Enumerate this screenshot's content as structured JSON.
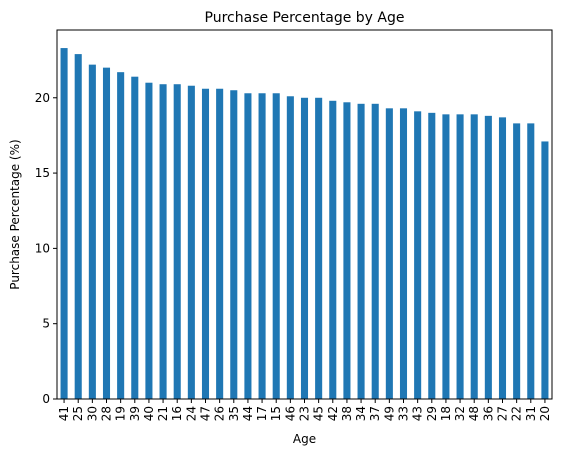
{
  "chart_data": {
    "type": "bar",
    "title": "Purchase Percentage by Age",
    "xlabel": "Age",
    "ylabel": "Purchase Percentage (%)",
    "ylim": [
      0,
      24.5
    ],
    "yticks": [
      0,
      5,
      10,
      15,
      20
    ],
    "grid": false,
    "bar_color": "#1f77b4",
    "categories": [
      "41",
      "25",
      "30",
      "28",
      "19",
      "39",
      "40",
      "21",
      "16",
      "24",
      "47",
      "26",
      "35",
      "44",
      "17",
      "15",
      "46",
      "23",
      "45",
      "42",
      "38",
      "34",
      "37",
      "49",
      "33",
      "43",
      "29",
      "18",
      "32",
      "48",
      "36",
      "27",
      "22",
      "31",
      "20"
    ],
    "values": [
      23.3,
      22.9,
      22.2,
      22.0,
      21.7,
      21.4,
      21.0,
      20.9,
      20.9,
      20.8,
      20.6,
      20.6,
      20.5,
      20.3,
      20.3,
      20.3,
      20.1,
      20.0,
      20.0,
      19.8,
      19.7,
      19.6,
      19.6,
      19.3,
      19.3,
      19.1,
      19.0,
      18.9,
      18.9,
      18.9,
      18.8,
      18.7,
      18.3,
      18.3,
      17.1
    ]
  }
}
